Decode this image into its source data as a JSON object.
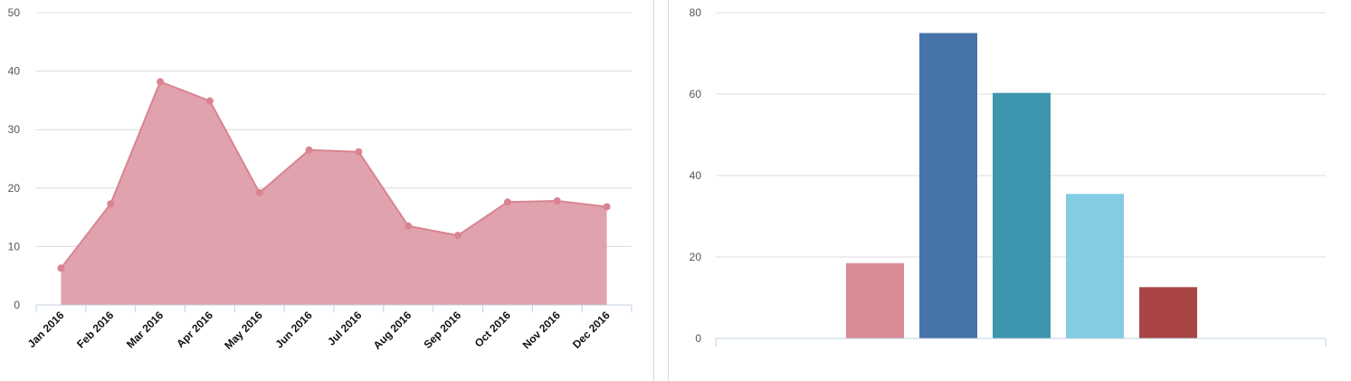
{
  "chart_data": [
    {
      "type": "area",
      "categories": [
        "Jan 2016",
        "Feb 2016",
        "Mar 2016",
        "Apr 2016",
        "May 2016",
        "Jun 2016",
        "Jul 2016",
        "Aug 2016",
        "Sep 2016",
        "Oct 2016",
        "Nov 2016",
        "Dec 2016"
      ],
      "values": [
        6.3,
        17.3,
        38.2,
        34.9,
        19.2,
        26.5,
        26.2,
        13.5,
        11.9,
        17.6,
        17.8,
        16.8
      ],
      "ylim": [
        0,
        50
      ],
      "yticks": [
        "0",
        "10",
        "20",
        "30",
        "40",
        "50"
      ],
      "grid": true,
      "color": "#e0a3ad",
      "line_color": "#d98490"
    },
    {
      "type": "bar",
      "values": [
        18.5,
        75,
        60.3,
        35.5,
        12.6
      ],
      "colors": [
        "#d98b96",
        "#4674a8",
        "#3e96ae",
        "#82cde3",
        "#a94645"
      ],
      "ylim": [
        0,
        80
      ],
      "yticks": [
        "0",
        "20",
        "40",
        "60",
        "80"
      ],
      "grid": true
    }
  ]
}
